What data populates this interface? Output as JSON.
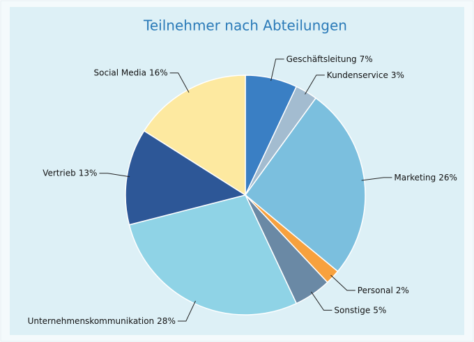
{
  "chart_data": {
    "type": "pie",
    "title": "Teilnehmer nach Abteilungen",
    "categories": [
      "Geschäftsleitung",
      "Kundenservice",
      "Marketing",
      "Personal",
      "Sonstige",
      "Unternehmenskommunikation",
      "Vertrieb",
      "Social Media"
    ],
    "values": [
      7,
      3,
      26,
      2,
      5,
      28,
      13,
      16
    ],
    "value_labels": [
      "7%",
      "3%",
      "26%",
      "2%",
      "5%",
      "28%",
      "13%",
      "16%"
    ],
    "colors": [
      "#3a7fc4",
      "#a3bcd0",
      "#7bbfde",
      "#f7a13e",
      "#6a89a5",
      "#8fd3e6",
      "#2d5797",
      "#fde9a0"
    ]
  }
}
